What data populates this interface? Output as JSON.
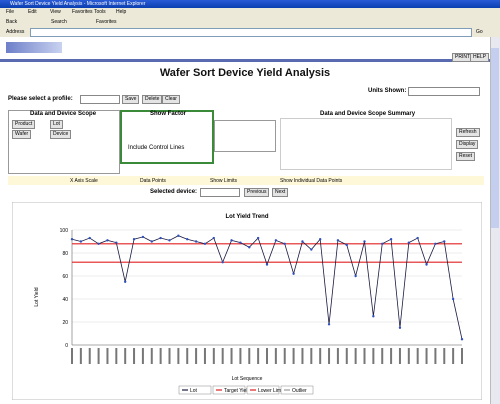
{
  "window_title": "Wafer Sort Device Yield Analysis - Microsoft Internet Explorer",
  "menu": [
    "File",
    "Edit",
    "View",
    "Favorites",
    "Tools",
    "Help"
  ],
  "toolbar": [
    "Back",
    "Search",
    "Favorites"
  ],
  "address_label": "Address",
  "go": "Go",
  "tabs": [
    "PRINT",
    "HELP"
  ],
  "header": {
    "title": "Wafer Sort Device Yield Analysis"
  },
  "form": {
    "profile_label": "Please select a profile:",
    "profile_buttons": [
      "Save",
      "Delete",
      "Clear"
    ],
    "units_label": "Units Shown:",
    "scope_title": "Data and Device Scope",
    "scope_fields": [
      "Product",
      "Lot",
      "Wafer",
      "Device"
    ],
    "factor_title": "Show Factor",
    "factor_check": "Include Control Lines",
    "summary_title": "Data and Device Scope Summary",
    "summary_buttons": [
      "Refresh",
      "Display",
      "Reset"
    ],
    "options": [
      "X Axis Scale",
      "Data Points",
      "Show Limits",
      "Show Individual Data Points"
    ],
    "device_label": "Selected device:",
    "device_buttons": [
      "Previous",
      "Next"
    ]
  },
  "chart_data": {
    "type": "line",
    "title": "Lot Yield Trend",
    "x_label": "Lot Sequence",
    "y_label": "Lot Yield",
    "color": "#1a1a40",
    "values": [
      92,
      90,
      93,
      88,
      91,
      89,
      55,
      92,
      94,
      90,
      93,
      91,
      95,
      92,
      90,
      88,
      93,
      72,
      91,
      89,
      85,
      93,
      70,
      91,
      88,
      62,
      90,
      83,
      92,
      18,
      91,
      87,
      60,
      90,
      25,
      88,
      92,
      15,
      89,
      93,
      70,
      88,
      90,
      40,
      5
    ],
    "ylim": [
      0,
      100
    ],
    "yticks": [
      0,
      20,
      40,
      60,
      80,
      100
    ],
    "limits": [
      {
        "name": "Target Yield",
        "value": 88,
        "color": "#e02020"
      },
      {
        "name": "Lower Limit",
        "value": 72,
        "color": "#e02020"
      }
    ],
    "legend": [
      "Lot",
      "Target Yield",
      "Lower Limit",
      "Outlier"
    ]
  }
}
